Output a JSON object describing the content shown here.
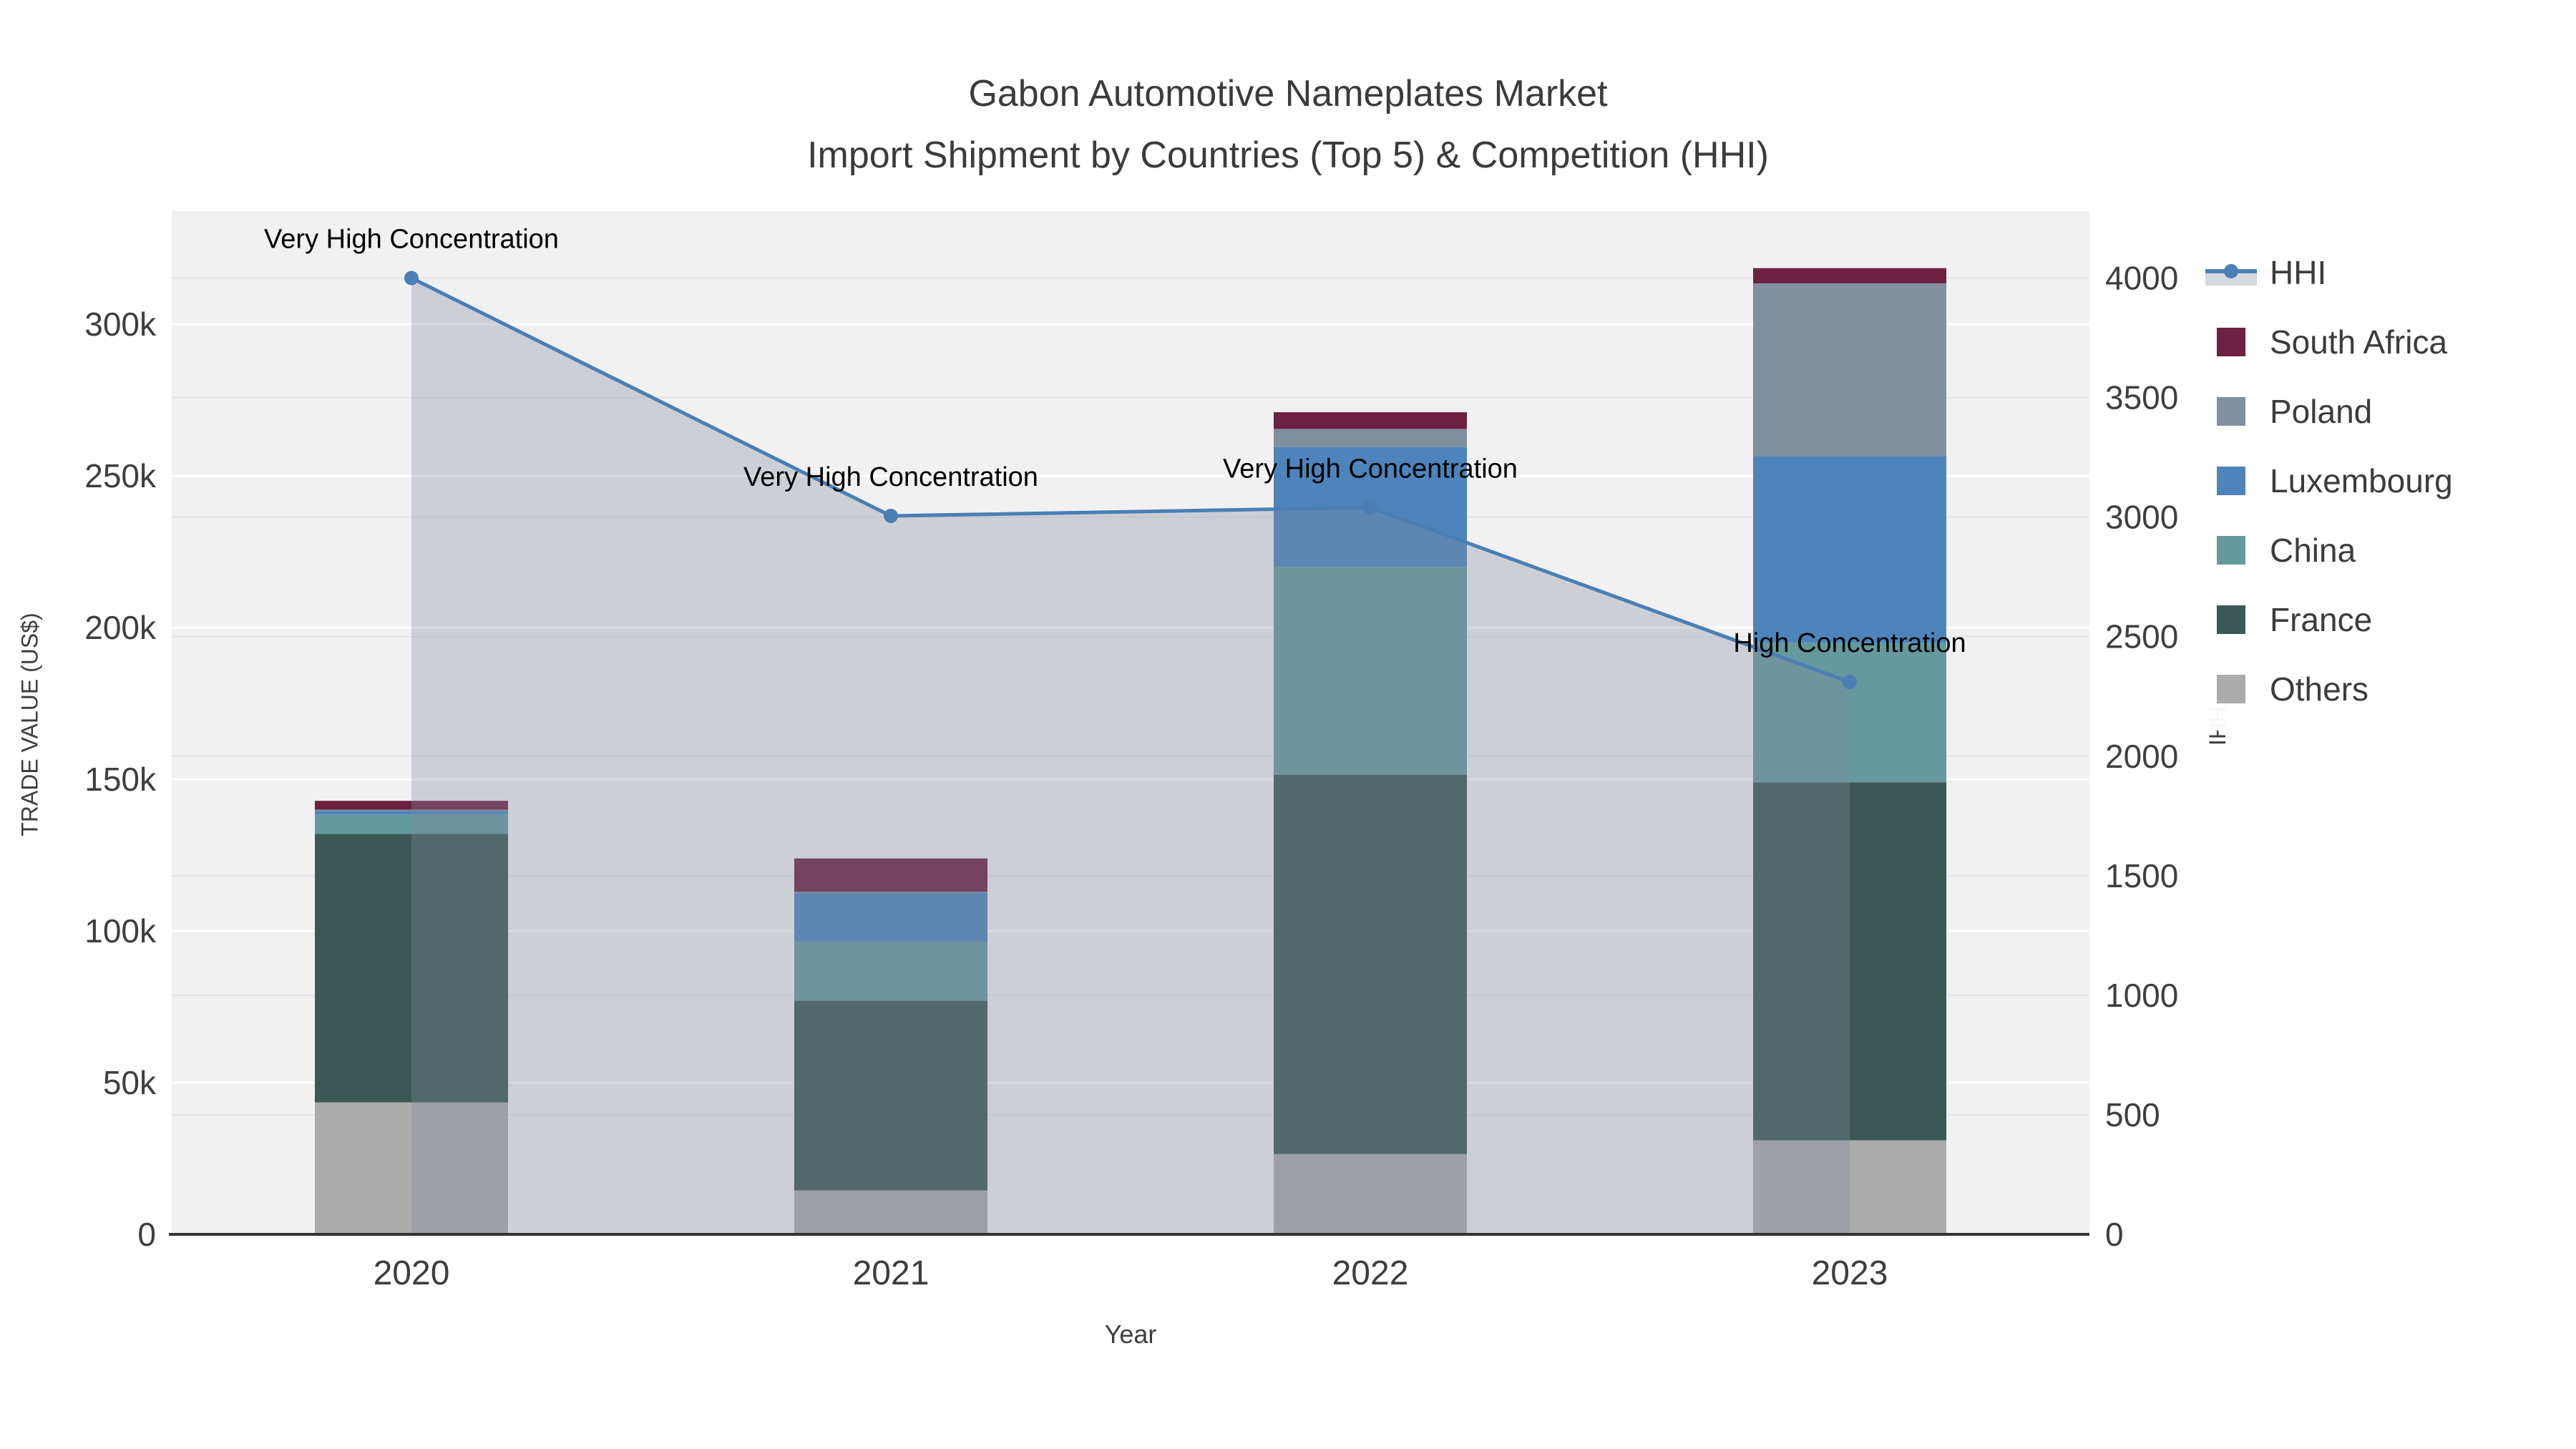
{
  "header": {
    "title": "Gabon Automotive Nameplates Market",
    "subtitle": "Import Shipment by Countries (Top 5) & Competition (HHI)"
  },
  "chart_data": {
    "type": "bar+line",
    "categories": [
      "2020",
      "2021",
      "2022",
      "2023"
    ],
    "xlabel": "Year",
    "ylabel_left": "TRADE VALUE (US$)",
    "ylabel_right": "HHI",
    "y_left_tick_values": [
      0,
      50,
      100,
      150,
      200,
      250,
      300
    ],
    "y_left_tick_labels": [
      "0",
      "50k",
      "100k",
      "150k",
      "200k",
      "250k",
      "300k"
    ],
    "y_left_max": 337.3,
    "y_left_units": "thousand US$",
    "y_right_max": 4280,
    "y_right_tick_step": 500,
    "y_right_tick_top": 4000,
    "grid": true,
    "legend_position": "right",
    "series": [
      {
        "name": "Others",
        "color": "#ababab",
        "values": [
          43.5,
          14.5,
          26.5,
          31
        ]
      },
      {
        "name": "France",
        "color": "#3b5854",
        "values": [
          88.5,
          62.5,
          125,
          118
        ]
      },
      {
        "name": "China",
        "color": "#64999d",
        "values": [
          6.4,
          19.5,
          68.5,
          46
        ]
      },
      {
        "name": "Luxembourg",
        "color": "#4d84bc",
        "values": [
          1.2,
          16,
          39.5,
          61.5
        ]
      },
      {
        "name": "Poland",
        "color": "#80909f",
        "values": [
          0.4,
          0.4,
          6,
          57
        ]
      },
      {
        "name": "South Africa",
        "color": "#6e2040",
        "values": [
          2.9,
          11,
          5.5,
          5
        ]
      }
    ],
    "hhi": {
      "name": "HHI",
      "color": "#4a7fb5",
      "area_fill": "rgba(130,140,158,0.33)",
      "values": [
        4000,
        3005,
        3040,
        2310
      ]
    },
    "annotations": [
      {
        "x": 0,
        "text": "Very High Concentration"
      },
      {
        "x": 1,
        "text": "Very High Concentration"
      },
      {
        "x": 2,
        "text": "Very High Concentration"
      },
      {
        "x": 3,
        "text": "High Concentration"
      }
    ],
    "legend": [
      "HHI",
      "South Africa",
      "Poland",
      "Luxembourg",
      "China",
      "France",
      "Others"
    ]
  }
}
